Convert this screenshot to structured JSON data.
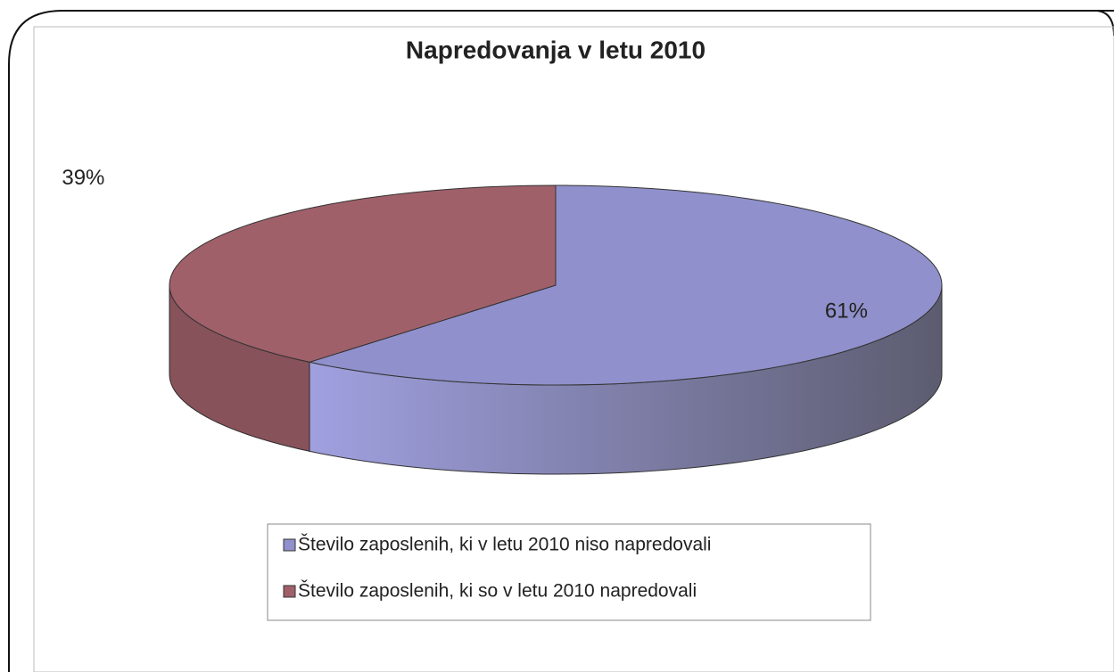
{
  "chart_data": {
    "type": "pie",
    "title": "Napredovanja v letu 2010",
    "categories": [
      "Število zaposlenih, ki v letu 2010 niso napredovali",
      "Število zaposlenih, ki so v letu 2010 napredovali"
    ],
    "values": [
      61,
      39
    ],
    "value_labels": [
      "61%",
      "39%"
    ],
    "colors": [
      "#9090cc",
      "#a0606a"
    ],
    "legend": "bottom"
  }
}
